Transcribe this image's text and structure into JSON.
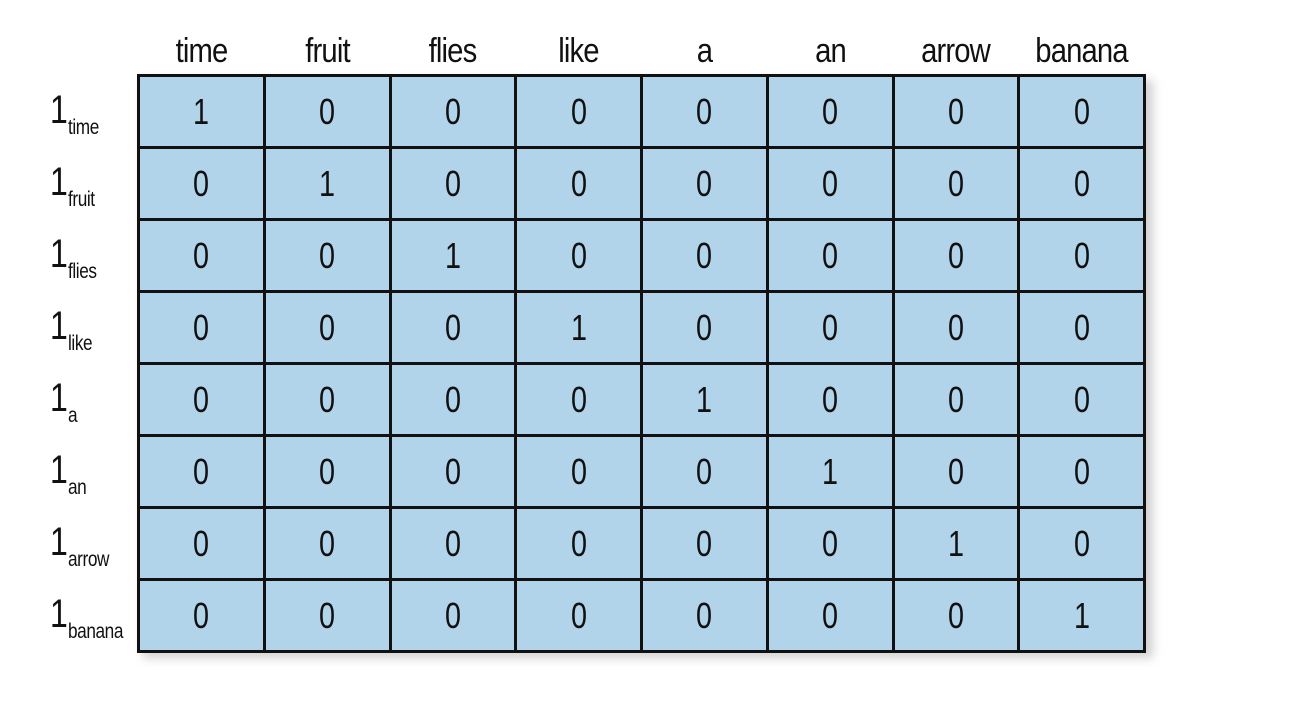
{
  "columns": [
    "time",
    "fruit",
    "flies",
    "like",
    "a",
    "an",
    "arrow",
    "banana"
  ],
  "rows": [
    {
      "label_main": "1",
      "label_sub": "time",
      "values": [
        1,
        0,
        0,
        0,
        0,
        0,
        0,
        0
      ]
    },
    {
      "label_main": "1",
      "label_sub": "fruit",
      "values": [
        0,
        1,
        0,
        0,
        0,
        0,
        0,
        0
      ]
    },
    {
      "label_main": "1",
      "label_sub": "flies",
      "values": [
        0,
        0,
        1,
        0,
        0,
        0,
        0,
        0
      ]
    },
    {
      "label_main": "1",
      "label_sub": "like",
      "values": [
        0,
        0,
        0,
        1,
        0,
        0,
        0,
        0
      ]
    },
    {
      "label_main": "1",
      "label_sub": "a",
      "values": [
        0,
        0,
        0,
        0,
        1,
        0,
        0,
        0
      ]
    },
    {
      "label_main": "1",
      "label_sub": "an",
      "values": [
        0,
        0,
        0,
        0,
        0,
        1,
        0,
        0
      ]
    },
    {
      "label_main": "1",
      "label_sub": "arrow",
      "values": [
        0,
        0,
        0,
        0,
        0,
        0,
        1,
        0
      ]
    },
    {
      "label_main": "1",
      "label_sub": "banana",
      "values": [
        0,
        0,
        0,
        0,
        0,
        0,
        0,
        1
      ]
    }
  ],
  "colors": {
    "cell_fill": "#b2d4ea",
    "grid_line": "#111111",
    "text": "#111111"
  }
}
